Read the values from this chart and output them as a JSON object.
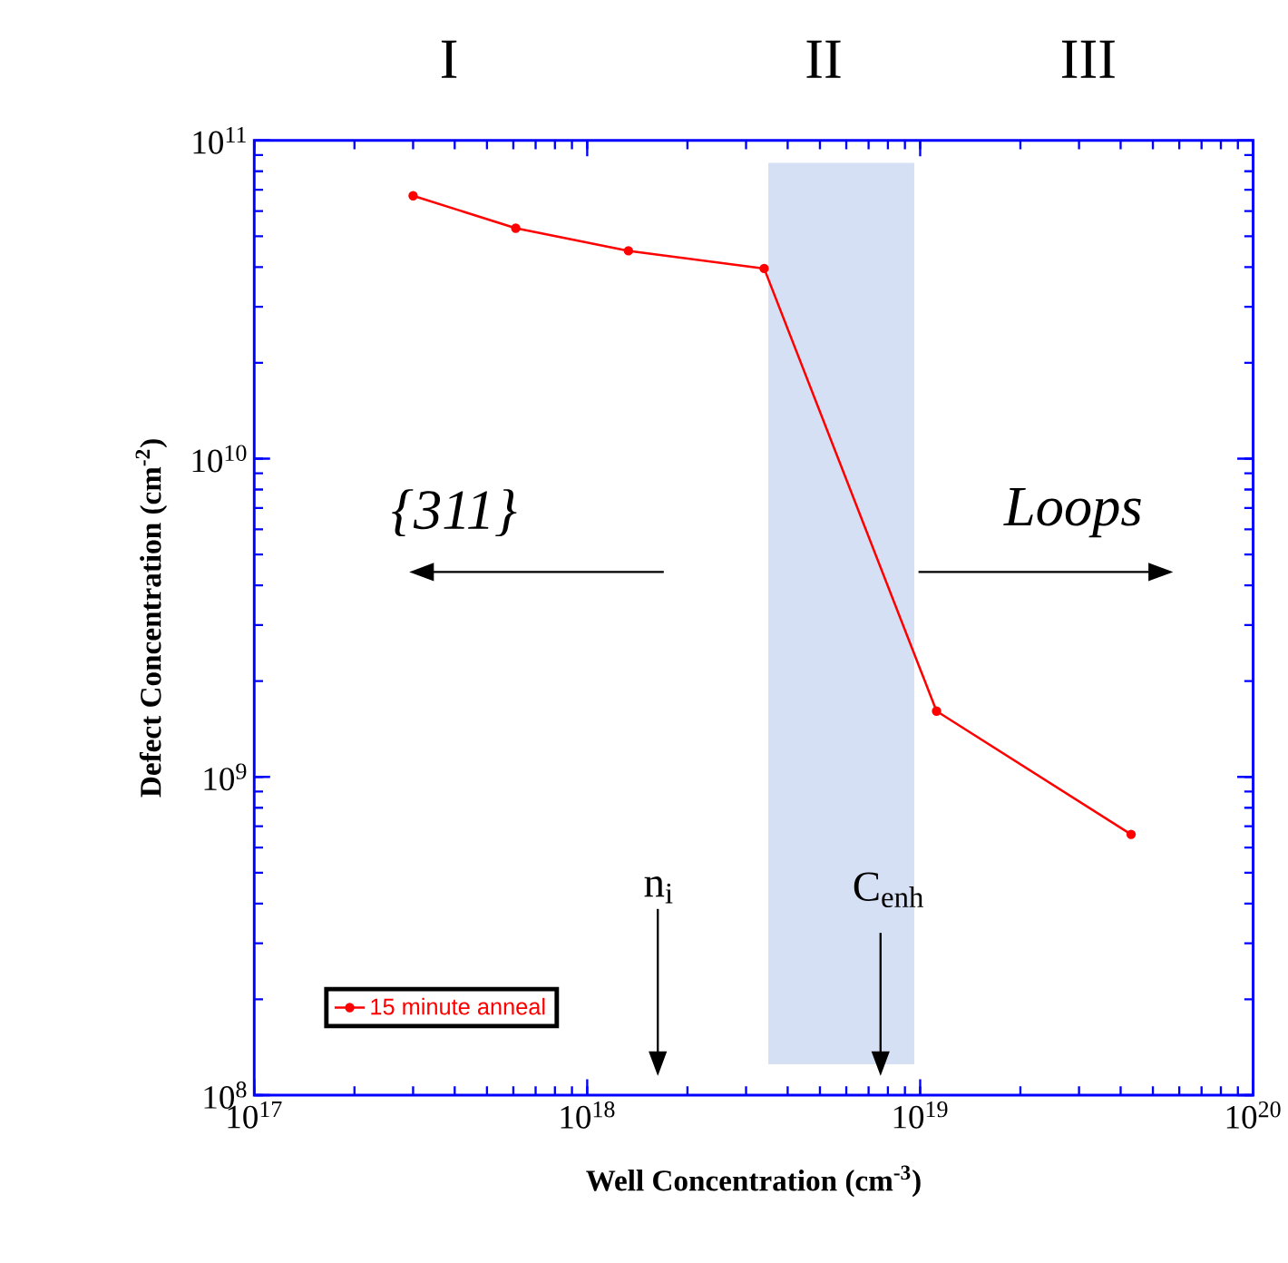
{
  "chart_data": {
    "type": "line",
    "xlabel": "**Well Concentration (cm$^{-3}$)**",
    "ylabel": "**Defect Concentration (cm$^{-2}$)**",
    "x": [
      3e+17,
      6.1e+17,
      1.33e+18,
      3.4e+18,
      1.12e+19,
      4.3e+19
    ],
    "series": [
      {
        "name": "15 minute anneal",
        "color": "#ff0000",
        "values": [
          67000000000.0,
          53000000000.0,
          45000000000.0,
          39600000000.0,
          1610000000.0,
          660000000.0
        ]
      }
    ],
    "log": "xy",
    "xlim": [
      1e+17,
      1e+20
    ],
    "ylim": [
      100000000.0,
      100000000000.0
    ],
    "xticks": [
      {
        "value": 1e+17,
        "label": "10$^{17}$"
      },
      {
        "value": 1e+18,
        "label": "10$^{18}$"
      },
      {
        "value": 1e+19,
        "label": "10$^{19}$"
      },
      {
        "value": 1e+20,
        "label": "10$^{20}$"
      }
    ],
    "yticks": [
      {
        "value": 100000000.0,
        "label": "10$^{8}$"
      },
      {
        "value": 1000000000.0,
        "label": "10$^{9}$"
      },
      {
        "value": 10000000000.0,
        "label": "10$^{10}$"
      },
      {
        "value": 100000000000.0,
        "label": "10$^{11}$"
      }
    ],
    "bands": [
      {
        "axis": "x",
        "from": 3.5e+18,
        "to": 9.6e+18,
        "color": "#d6e0f5"
      }
    ],
    "annotations": [
      "I",
      "II",
      "III",
      "*{311}*",
      "*Loops*",
      "n$_{i}$",
      "C$_{enh}$"
    ],
    "marker": "circle",
    "line_style": "solid",
    "grid": false,
    "legend": "bottom left"
  }
}
